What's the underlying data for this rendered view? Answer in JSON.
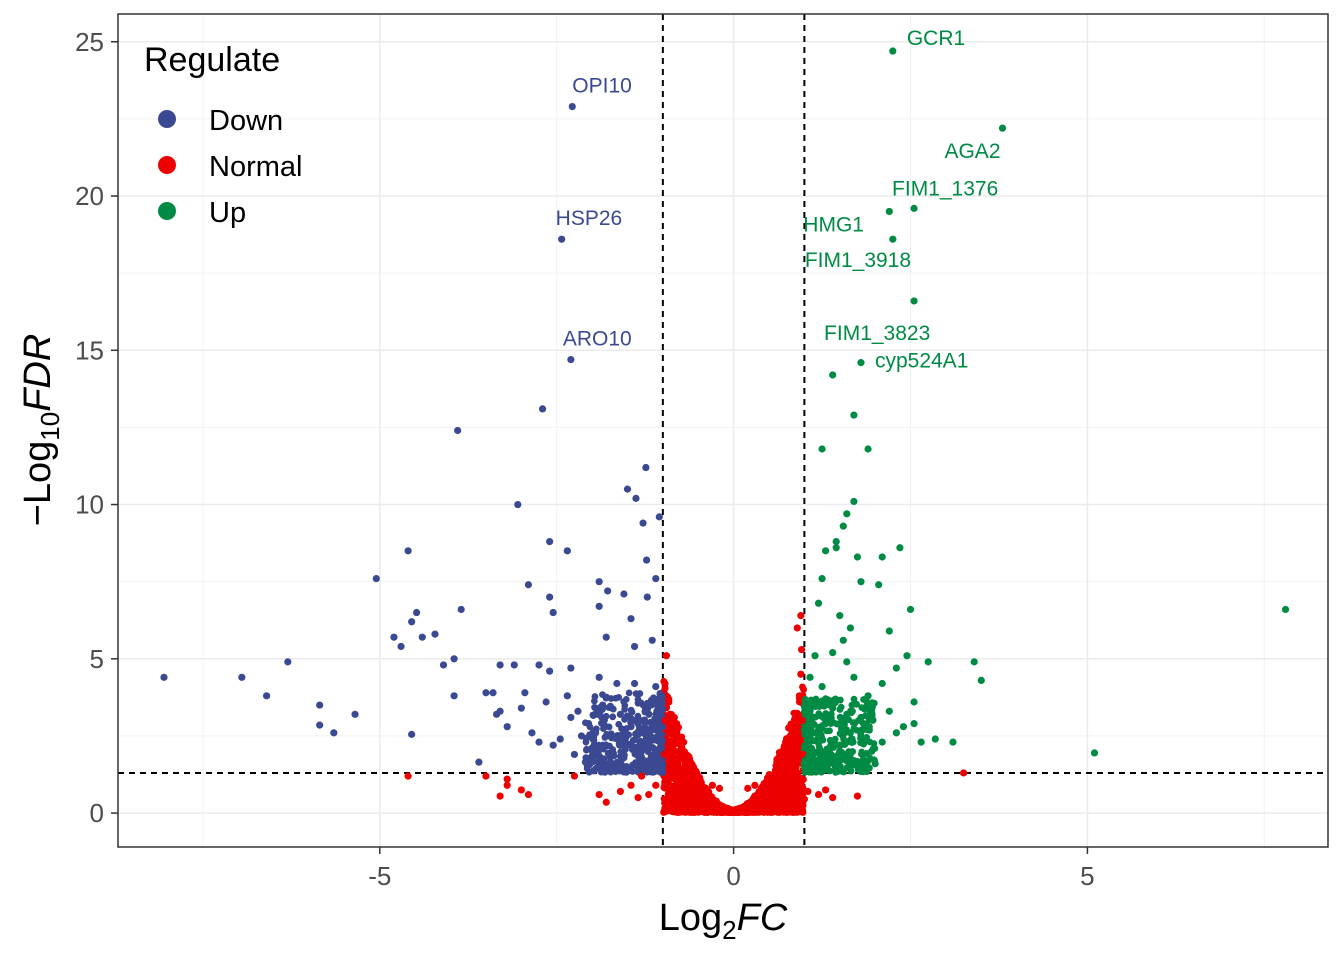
{
  "chart_data": {
    "type": "scatter",
    "title": "",
    "xlabel": {
      "base": "Log",
      "sub": "2",
      "italic": "FC"
    },
    "ylabel": {
      "prefix": "−",
      "base": "Log",
      "sub": "10",
      "italic": "FDR"
    },
    "xlim": [
      -8.7,
      8.4
    ],
    "ylim": [
      -1.1,
      25.9
    ],
    "xticks": [
      -5,
      0,
      5
    ],
    "xtick_labels": [
      "-5",
      "0",
      "5"
    ],
    "yticks": [
      0,
      5,
      10,
      15,
      20,
      25
    ],
    "ytick_labels": [
      "0",
      "5",
      "10",
      "15",
      "20",
      "25"
    ],
    "grid": true,
    "thresholds": {
      "x": [
        -1,
        1
      ],
      "y": 1.3
    },
    "legend": {
      "title": "Regulate",
      "position": "top-left",
      "entries": [
        {
          "label": "Down",
          "color": "#3B4992"
        },
        {
          "label": "Normal",
          "color": "#EE0000"
        },
        {
          "label": "Up",
          "color": "#008B45"
        }
      ]
    },
    "series": [
      {
        "name": "Down",
        "color": "#3B4992",
        "points": [
          [
            -2.28,
            22.9
          ],
          [
            -2.43,
            18.6
          ],
          [
            -2.3,
            14.7
          ],
          [
            -2.7,
            13.1
          ],
          [
            -3.9,
            12.4
          ],
          [
            -1.24,
            11.2
          ],
          [
            -1.5,
            10.5
          ],
          [
            -1.38,
            10.2
          ],
          [
            -3.05,
            10
          ],
          [
            -1.05,
            9.6
          ],
          [
            -1.28,
            9.4
          ],
          [
            -2.6,
            8.8
          ],
          [
            -2.35,
            8.5
          ],
          [
            -4.6,
            8.5
          ],
          [
            -1.23,
            8.2
          ],
          [
            -5.05,
            7.6
          ],
          [
            -1.1,
            7.6
          ],
          [
            -1.9,
            7.5
          ],
          [
            -2.9,
            7.4
          ],
          [
            -1.78,
            7.2
          ],
          [
            -1.55,
            7.1
          ],
          [
            -2.6,
            7
          ],
          [
            -1.22,
            7
          ],
          [
            -1.9,
            6.7
          ],
          [
            -3.85,
            6.6
          ],
          [
            -2.55,
            6.5
          ],
          [
            -1.45,
            6.3
          ],
          [
            -4.48,
            6.5
          ],
          [
            -4.55,
            6.2
          ],
          [
            -4.22,
            5.8
          ],
          [
            -4.4,
            5.7
          ],
          [
            -4.8,
            5.7
          ],
          [
            -4.7,
            5.4
          ],
          [
            -1.8,
            5.7
          ],
          [
            -1.15,
            5.6
          ],
          [
            -1.4,
            5.4
          ],
          [
            -6.3,
            4.9
          ],
          [
            -3.95,
            5
          ],
          [
            -4.1,
            4.8
          ],
          [
            -3.3,
            4.8
          ],
          [
            -3.1,
            4.8
          ],
          [
            -2.75,
            4.8
          ],
          [
            -2.6,
            4.6
          ],
          [
            -2.3,
            4.7
          ],
          [
            -1.9,
            4.4
          ],
          [
            -1.65,
            4.2
          ],
          [
            -1.4,
            4.2
          ],
          [
            -1.1,
            4.1
          ],
          [
            -8.05,
            4.4
          ],
          [
            -6.95,
            4.4
          ],
          [
            -6.6,
            3.8
          ],
          [
            -5.85,
            3.5
          ],
          [
            -5.35,
            3.2
          ],
          [
            -5.85,
            2.85
          ],
          [
            -5.65,
            2.6
          ],
          [
            -4.55,
            2.55
          ],
          [
            -3.95,
            3.8
          ],
          [
            -3.6,
            1.65
          ],
          [
            -3.5,
            3.9
          ],
          [
            -3.35,
            3.2
          ],
          [
            -2.95,
            3.9
          ],
          [
            -2.65,
            3.6
          ],
          [
            -2.3,
            3.1
          ],
          [
            -2.15,
            2.5
          ],
          [
            -1.85,
            3.5
          ],
          [
            -1.6,
            3.2
          ],
          [
            -1.45,
            2.8
          ],
          [
            -1.25,
            3.3
          ],
          [
            -1.05,
            3.6
          ],
          [
            -3.4,
            3.9
          ],
          [
            -3.3,
            3.3
          ],
          [
            -3.2,
            2.8
          ],
          [
            -3.0,
            3.4
          ],
          [
            -2.85,
            2.6
          ],
          [
            -2.75,
            2.3
          ],
          [
            -2.55,
            2.2
          ],
          [
            -2.45,
            2.4
          ],
          [
            -2.35,
            3.8
          ],
          [
            -2.2,
            3.3
          ],
          [
            -2.05,
            2.9
          ],
          [
            -1.95,
            2.6
          ],
          [
            -1.85,
            2.2
          ],
          [
            -1.75,
            1.9
          ],
          [
            -1.65,
            2.5
          ],
          [
            -1.55,
            1.8
          ],
          [
            -1.45,
            2.2
          ],
          [
            -1.35,
            2.6
          ],
          [
            -1.3,
            1.7
          ],
          [
            -1.2,
            2.1
          ],
          [
            -1.15,
            2.4
          ],
          [
            -1.1,
            1.8
          ],
          [
            -1.05,
            2.9
          ],
          [
            -1.02,
            1.5
          ],
          [
            -1.6,
            1.6
          ],
          [
            -1.9,
            1.6
          ],
          [
            -2.25,
            1.9
          ],
          [
            -1.5,
            1.45
          ],
          [
            -1.2,
            1.45
          ],
          [
            -1.75,
            1.5
          ]
        ]
      },
      {
        "name": "Normal",
        "color": "#EE0000",
        "points": [
          [
            -0.95,
            5.1
          ],
          [
            -0.97,
            4.2
          ],
          [
            -0.92,
            3.7
          ],
          [
            -0.9,
            3.2
          ],
          [
            -0.85,
            2.8
          ],
          [
            -0.8,
            2.5
          ],
          [
            -0.75,
            2.2
          ],
          [
            -0.7,
            1.9
          ],
          [
            -0.65,
            1.6
          ],
          [
            -0.6,
            1.4
          ],
          [
            -0.55,
            1.2
          ],
          [
            -0.5,
            1.0
          ],
          [
            -0.45,
            0.85
          ],
          [
            -0.4,
            0.7
          ],
          [
            -0.35,
            0.55
          ],
          [
            -0.3,
            0.45
          ],
          [
            -0.25,
            0.35
          ],
          [
            -0.2,
            0.25
          ],
          [
            -0.15,
            0.18
          ],
          [
            -0.1,
            0.12
          ],
          [
            -0.05,
            0.06
          ],
          [
            0,
            0.03
          ],
          [
            0.05,
            0.06
          ],
          [
            0.1,
            0.12
          ],
          [
            0.15,
            0.18
          ],
          [
            0.2,
            0.25
          ],
          [
            0.25,
            0.35
          ],
          [
            0.3,
            0.45
          ],
          [
            0.35,
            0.55
          ],
          [
            0.4,
            0.7
          ],
          [
            0.45,
            0.85
          ],
          [
            0.5,
            1.0
          ],
          [
            0.55,
            1.2
          ],
          [
            0.6,
            1.4
          ],
          [
            0.65,
            1.6
          ],
          [
            0.7,
            1.9
          ],
          [
            0.75,
            2.2
          ],
          [
            0.8,
            2.5
          ],
          [
            0.85,
            2.8
          ],
          [
            0.9,
            3.2
          ],
          [
            0.93,
            3.8
          ],
          [
            0.95,
            4.5
          ],
          [
            0.96,
            5.3
          ],
          [
            0.95,
            6.4
          ],
          [
            0.9,
            6.0
          ],
          [
            -0.9,
            2.0
          ],
          [
            -0.88,
            1.5
          ],
          [
            -0.8,
            1.1
          ],
          [
            -0.85,
            0.8
          ],
          [
            -0.7,
            0.8
          ],
          [
            -0.75,
            0.5
          ],
          [
            -0.6,
            0.6
          ],
          [
            -0.5,
            0.4
          ],
          [
            -0.9,
            0.4
          ],
          [
            -1.1,
            0.9
          ],
          [
            -1.2,
            0.6
          ],
          [
            -1.35,
            0.5
          ],
          [
            -1.45,
            0.9
          ],
          [
            -1.6,
            0.7
          ],
          [
            -1.8,
            0.35
          ],
          [
            -1.9,
            0.6
          ],
          [
            -2.25,
            1.2
          ],
          [
            -1.3,
            1.2
          ],
          [
            -3.2,
            1.1
          ],
          [
            -3.2,
            0.9
          ],
          [
            -3.5,
            1.2
          ],
          [
            -4.6,
            1.2
          ],
          [
            -3.3,
            0.55
          ],
          [
            -3.0,
            0.75
          ],
          [
            -2.9,
            0.6
          ],
          [
            -0.2,
            0.8
          ],
          [
            0.2,
            0.8
          ],
          [
            0.3,
            0.55
          ],
          [
            0.5,
            0.5
          ],
          [
            0.6,
            0.8
          ],
          [
            0.7,
            1.3
          ],
          [
            0.8,
            1.0
          ],
          [
            0.9,
            1.3
          ],
          [
            0.85,
            0.7
          ],
          [
            1.0,
            0.45
          ],
          [
            1.05,
            0.7
          ],
          [
            1.2,
            0.6
          ],
          [
            1.3,
            0.75
          ],
          [
            1.4,
            0.5
          ],
          [
            1.75,
            0.55
          ],
          [
            3.25,
            1.3
          ],
          [
            -0.98,
            1.9
          ],
          [
            0.98,
            1.9
          ],
          [
            -0.97,
            3.0
          ],
          [
            0.97,
            3.0
          ],
          [
            -0.3,
            0.9
          ],
          [
            0.3,
            0.9
          ]
        ]
      },
      {
        "name": "Up",
        "color": "#008B45",
        "points": [
          [
            2.25,
            24.7
          ],
          [
            3.8,
            22.2
          ],
          [
            2.55,
            19.6
          ],
          [
            2.2,
            19.5
          ],
          [
            2.25,
            18.6
          ],
          [
            2.55,
            16.6
          ],
          [
            1.8,
            14.6
          ],
          [
            1.4,
            14.2
          ],
          [
            1.7,
            12.9
          ],
          [
            1.9,
            11.8
          ],
          [
            1.25,
            11.8
          ],
          [
            1.7,
            10.1
          ],
          [
            1.6,
            9.7
          ],
          [
            1.55,
            9.3
          ],
          [
            1.45,
            8.8
          ],
          [
            1.45,
            8.6
          ],
          [
            2.35,
            8.6
          ],
          [
            1.3,
            8.5
          ],
          [
            1.75,
            8.3
          ],
          [
            2.1,
            8.3
          ],
          [
            1.8,
            7.5
          ],
          [
            2.05,
            7.4
          ],
          [
            1.25,
            7.6
          ],
          [
            1.2,
            6.8
          ],
          [
            2.5,
            6.6
          ],
          [
            1.5,
            6.4
          ],
          [
            1.65,
            6.0
          ],
          [
            2.2,
            5.9
          ],
          [
            1.55,
            5.6
          ],
          [
            2.45,
            5.1
          ],
          [
            2.75,
            4.9
          ],
          [
            3.4,
            4.9
          ],
          [
            3.5,
            4.3
          ],
          [
            2.3,
            4.7
          ],
          [
            2.55,
            3.6
          ],
          [
            2.1,
            4.2
          ],
          [
            1.9,
            3.8
          ],
          [
            1.7,
            4.4
          ],
          [
            1.6,
            4.9
          ],
          [
            1.4,
            5.2
          ],
          [
            1.15,
            5.1
          ],
          [
            2.85,
            2.4
          ],
          [
            3.1,
            2.3
          ],
          [
            5.1,
            1.95
          ],
          [
            7.8,
            6.6
          ],
          [
            2.55,
            2.9
          ],
          [
            2.3,
            2.6
          ],
          [
            2.1,
            2.3
          ],
          [
            1.95,
            2.0
          ],
          [
            1.8,
            3.1
          ],
          [
            1.65,
            2.6
          ],
          [
            1.5,
            2.2
          ],
          [
            1.4,
            3.4
          ],
          [
            1.3,
            2.9
          ],
          [
            1.2,
            2.5
          ],
          [
            1.1,
            2.1
          ],
          [
            1.05,
            1.8
          ],
          [
            1.0,
            2.7
          ],
          [
            1.0,
            1.6
          ],
          [
            1.15,
            3.5
          ],
          [
            1.25,
            4.1
          ],
          [
            1.35,
            1.9
          ],
          [
            1.45,
            1.6
          ],
          [
            1.55,
            1.8
          ],
          [
            1.7,
            1.7
          ],
          [
            1.85,
            1.5
          ],
          [
            2.0,
            1.6
          ],
          [
            1.12,
            1.5
          ],
          [
            1.22,
            1.9
          ],
          [
            1.05,
            3.2
          ],
          [
            1.08,
            4.4
          ],
          [
            1.3,
            3.7
          ],
          [
            1.6,
            3.2
          ],
          [
            1.9,
            2.7
          ],
          [
            2.2,
            3.3
          ],
          [
            2.4,
            2.8
          ],
          [
            2.65,
            2.3
          ]
        ]
      }
    ],
    "annotations": [
      {
        "text": "OPI10",
        "series": "Down",
        "color": "#3B4992",
        "x": -2.28,
        "y": 22.9
      },
      {
        "text": "HSP26",
        "series": "Down",
        "color": "#3B4992",
        "x": -2.43,
        "y": 18.6
      },
      {
        "text": "ARO10",
        "series": "Down",
        "color": "#3B4992",
        "x": -2.3,
        "y": 14.7
      },
      {
        "text": "GCR1",
        "series": "Up",
        "color": "#008B45",
        "x": 2.25,
        "y": 24.7
      },
      {
        "text": "AGA2",
        "series": "Up",
        "color": "#008B45",
        "x": 3.8,
        "y": 22.2
      },
      {
        "text": "FIM1_1376",
        "series": "Up",
        "color": "#008B45",
        "x": 2.55,
        "y": 19.6
      },
      {
        "text": "HMG1",
        "series": "Up",
        "color": "#008B45",
        "x": 2.2,
        "y": 19.5
      },
      {
        "text": "FIM1_3918",
        "series": "Up",
        "color": "#008B45",
        "x": 2.25,
        "y": 18.6
      },
      {
        "text": "FIM1_3823",
        "series": "Up",
        "color": "#008B45",
        "x": 2.55,
        "y": 16.6
      },
      {
        "text": "cyp524A1",
        "series": "Up",
        "color": "#008B45",
        "x": 1.8,
        "y": 14.6
      }
    ]
  }
}
